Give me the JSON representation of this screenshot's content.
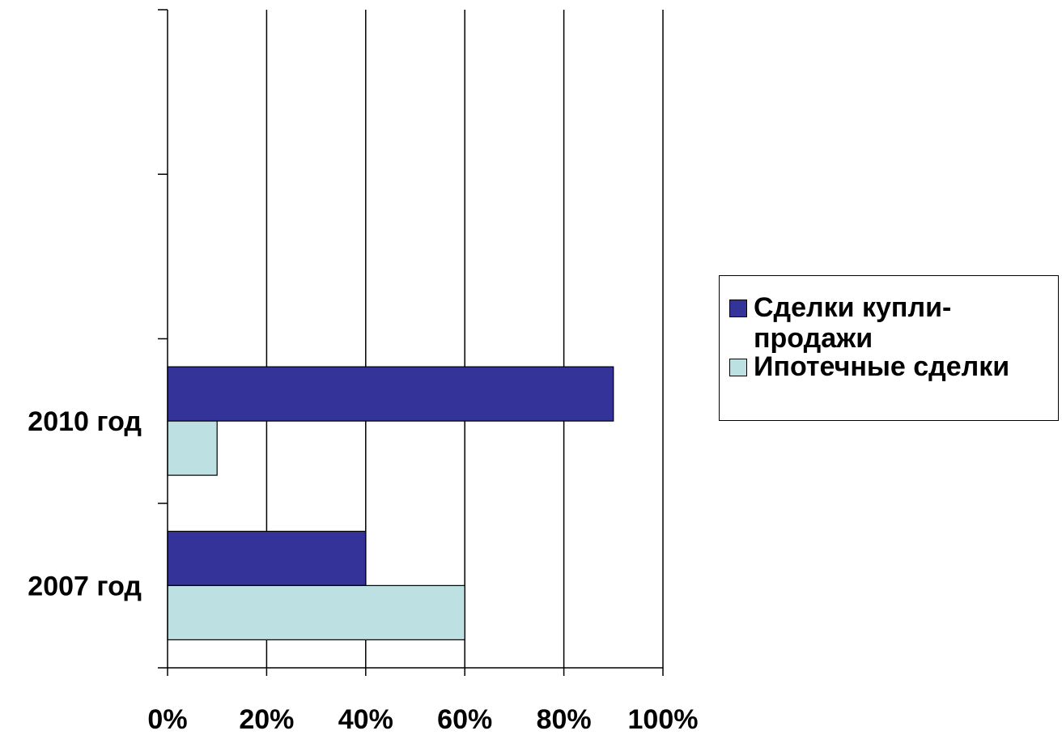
{
  "chart_data": {
    "type": "bar",
    "orientation": "horizontal",
    "categories": [
      "2007 год",
      "2010 год"
    ],
    "series": [
      {
        "name": "Сделки купли-продажи",
        "values": [
          40,
          90
        ],
        "color": "#333399"
      },
      {
        "name": "Ипотечные сделки",
        "values": [
          60,
          10
        ],
        "color": "#bde0e2"
      }
    ],
    "x_ticks": [
      "0%",
      "20%",
      "40%",
      "60%",
      "80%",
      "100%"
    ],
    "xlim": [
      0,
      100
    ],
    "grid": true,
    "legend_position": "right",
    "title": "",
    "xlabel": "",
    "ylabel": ""
  },
  "legend": {
    "items": [
      {
        "label": "Сделки купли-продажи",
        "color": "#333399"
      },
      {
        "label": "Ипотечные сделки",
        "color": "#bde0e2"
      }
    ]
  }
}
